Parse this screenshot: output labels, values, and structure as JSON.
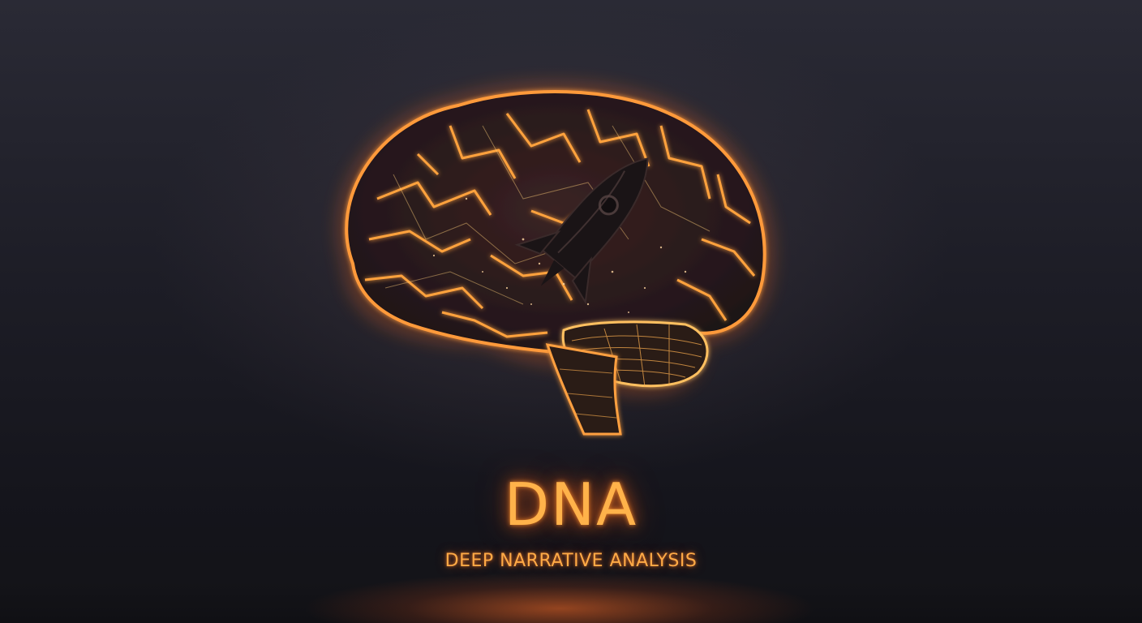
{
  "brand": {
    "title": "DNA",
    "subtitle": "DEEP NARRATIVE ANALYSIS"
  },
  "illustration": {
    "subject": "brain-icon",
    "overlay": "rocket-icon"
  },
  "colors": {
    "glow": "#ff8a2a",
    "glow_light": "#ffc56a",
    "background": "#1b1b23",
    "rocket": "#1a1416"
  }
}
